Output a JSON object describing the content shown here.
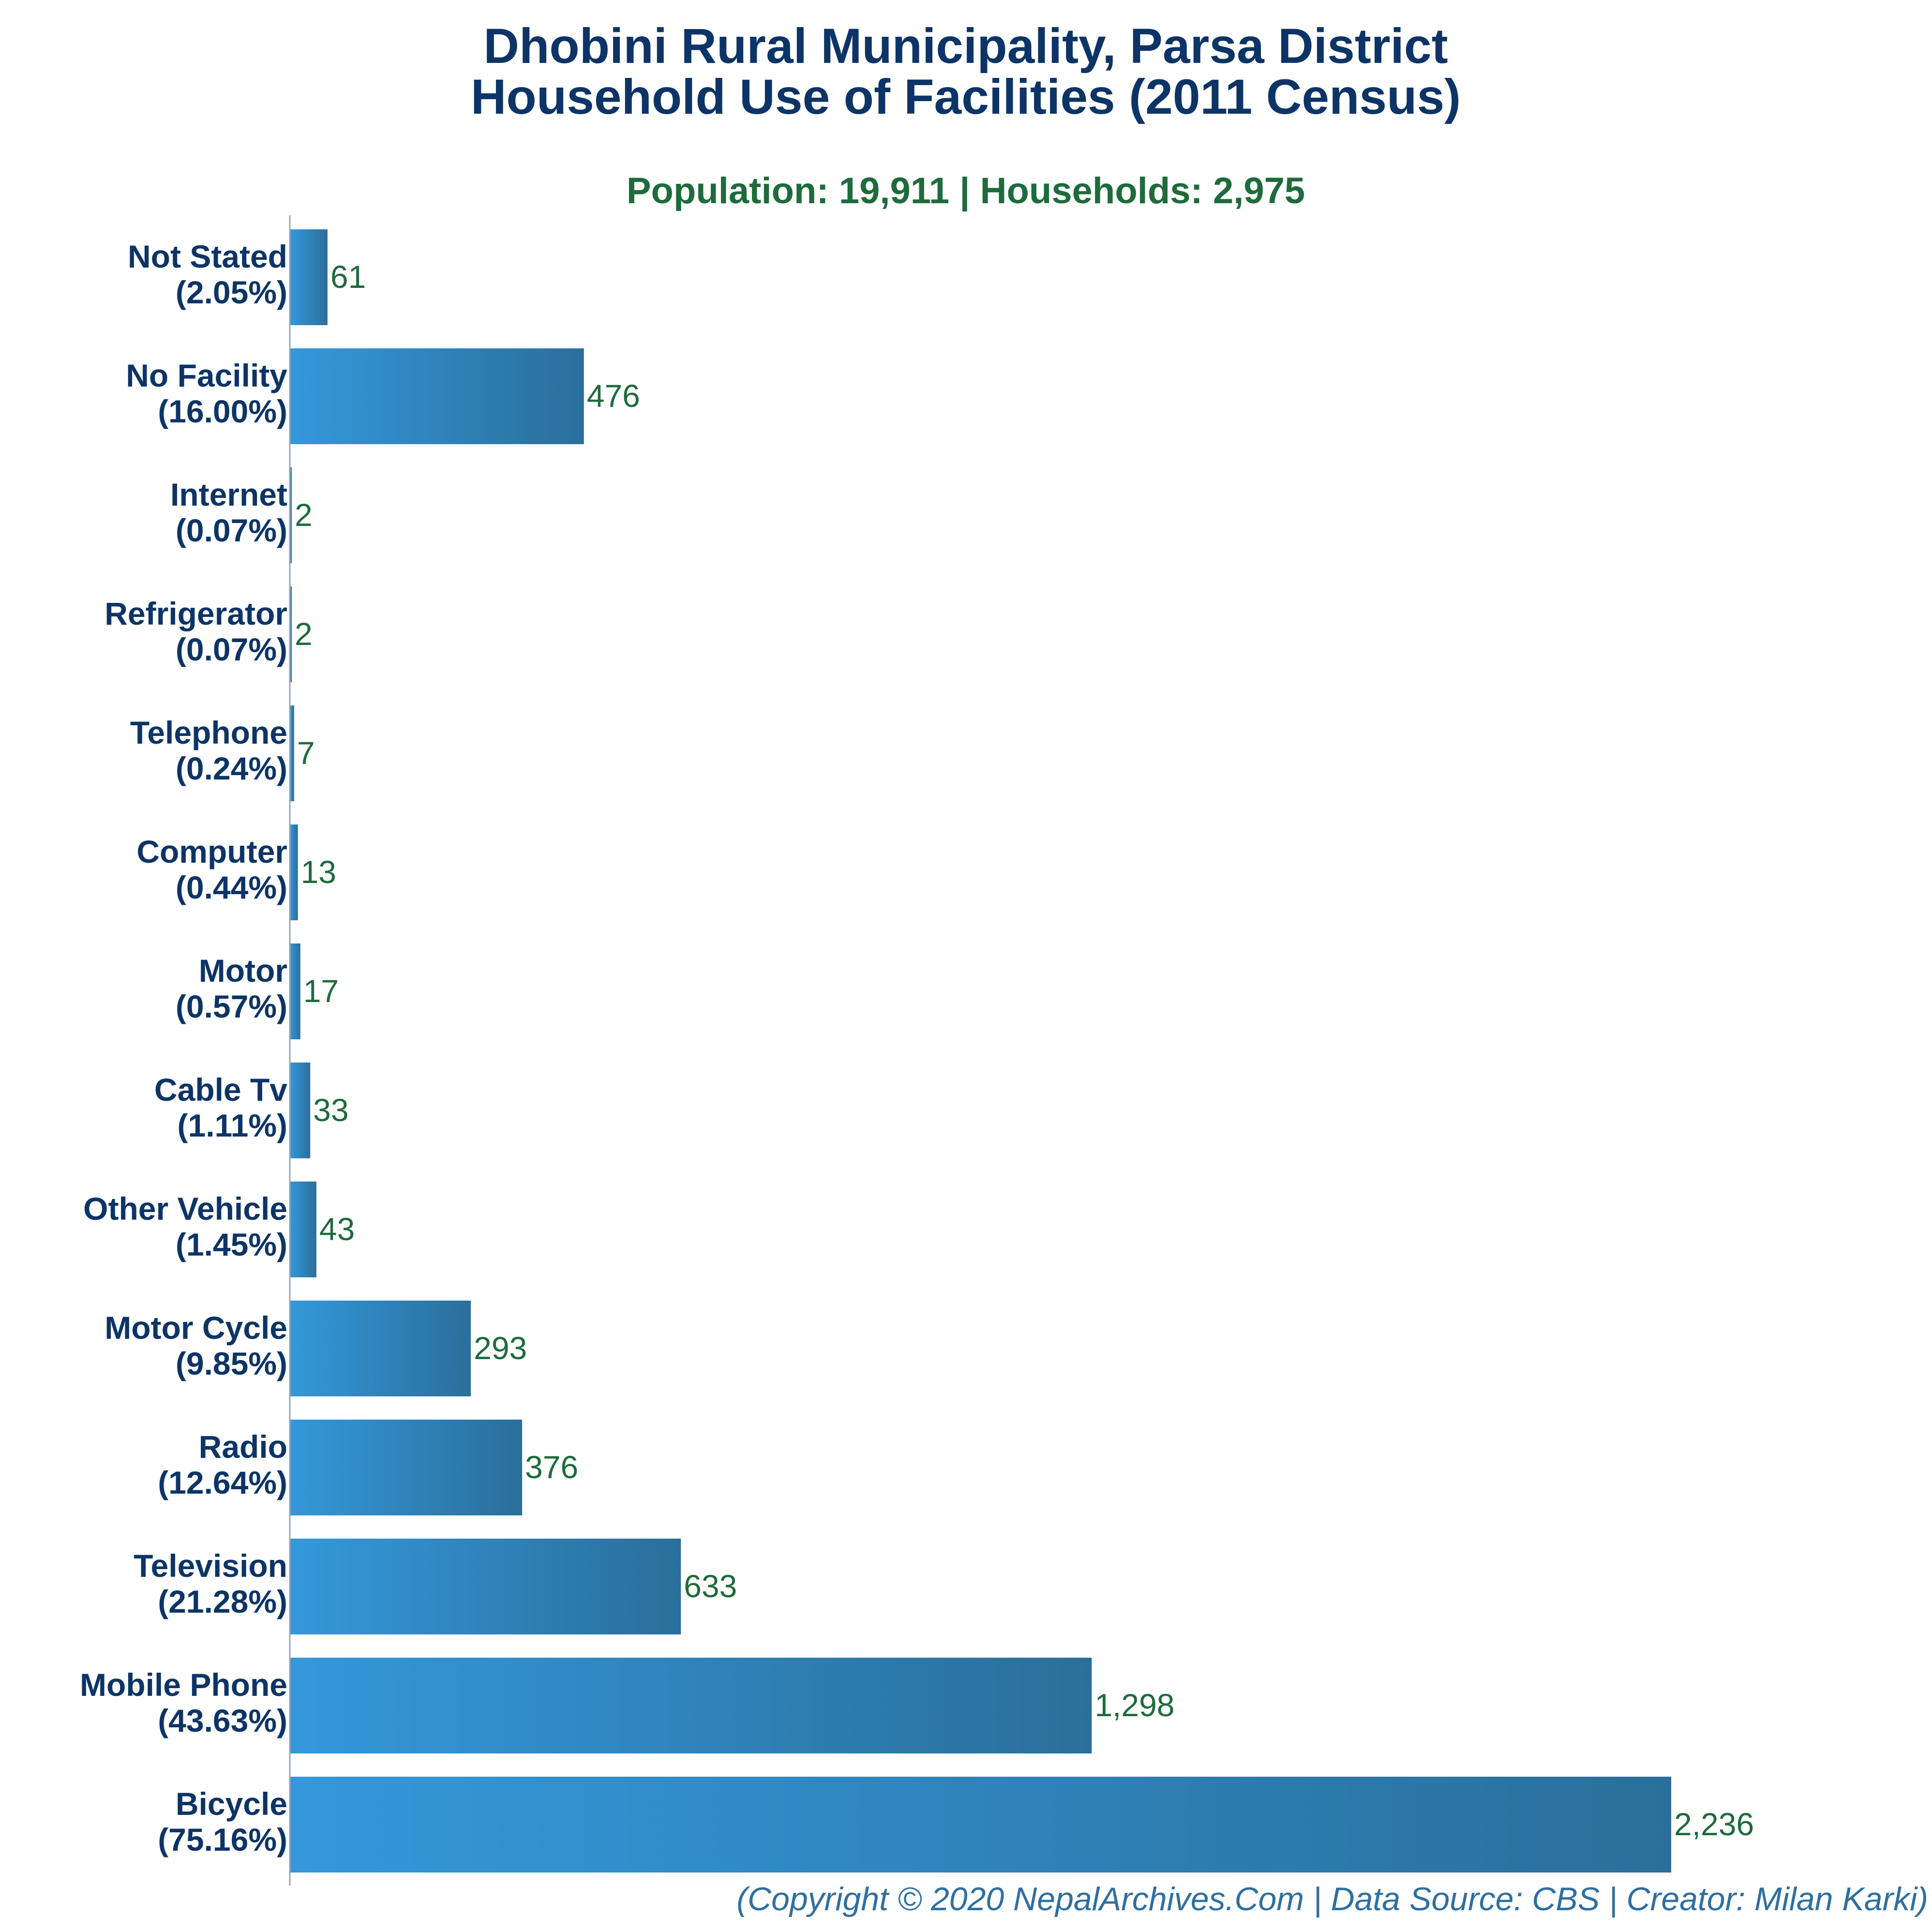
{
  "header": {
    "title_line1": "Dhobini Rural Municipality, Parsa District",
    "title_line2": "Household Use of Facilities (2011 Census)",
    "subtitle": "Population: 19,911 | Households: 2,975"
  },
  "footer": {
    "credit": "(Copyright © 2020 NepalArchives.Com | Data Source: CBS | Creator: Milan Karki)"
  },
  "colors": {
    "bar_light": "#3498db",
    "bar_dark": "#2a6f9b",
    "axis": "#9aa7b4",
    "title": "#0d3466",
    "value": "#1e6b3c"
  },
  "chart_data": {
    "type": "bar",
    "orientation": "horizontal",
    "title": "Dhobini Rural Municipality, Parsa District Household Use of Facilities (2011 Census)",
    "subtitle": "Population: 19,911 | Households: 2,975",
    "xlabel": "",
    "ylabel": "",
    "grid": false,
    "legend": "none",
    "categories": [
      "Not Stated",
      "No Facility",
      "Internet",
      "Refrigerator",
      "Telephone",
      "Computer",
      "Motor",
      "Cable Tv",
      "Other Vehicle",
      "Motor Cycle",
      "Radio",
      "Television",
      "Mobile Phone",
      "Bicycle"
    ],
    "percent_labels": [
      "(2.05%)",
      "(16.00%)",
      "(0.07%)",
      "(0.07%)",
      "(0.24%)",
      "(0.44%)",
      "(0.57%)",
      "(1.11%)",
      "(1.45%)",
      "(9.85%)",
      "(12.64%)",
      "(21.28%)",
      "(43.63%)",
      "(75.16%)"
    ],
    "values": [
      61,
      476,
      2,
      2,
      7,
      13,
      17,
      33,
      43,
      293,
      376,
      633,
      1298,
      2236
    ],
    "value_labels": [
      "61",
      "476",
      "2",
      "2",
      "7",
      "13",
      "17",
      "33",
      "43",
      "293",
      "376",
      "633",
      "1,298",
      "2,236"
    ]
  }
}
